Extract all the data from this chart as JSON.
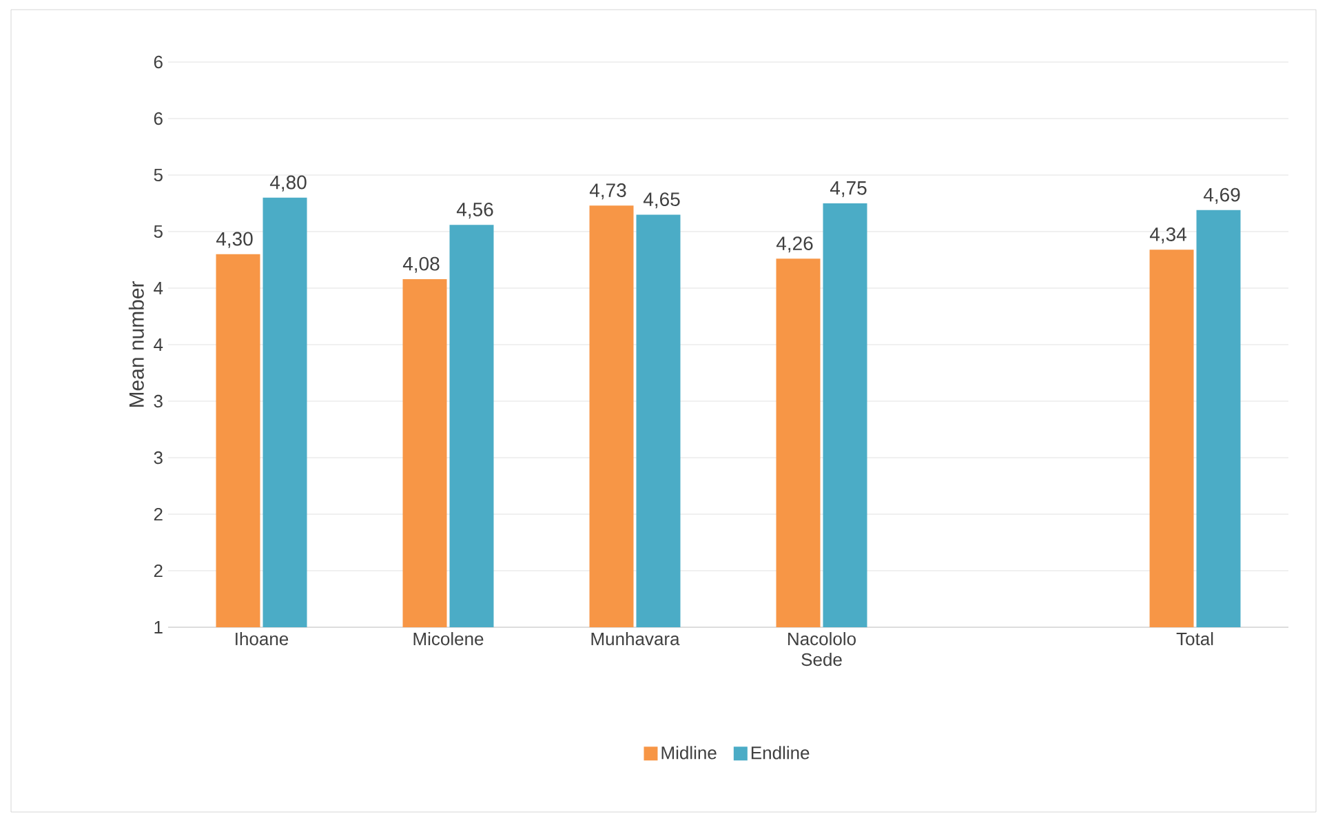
{
  "chart_data": {
    "type": "bar",
    "ylabel": "Mean number",
    "categories": [
      "Ihoane",
      "Micolene",
      "Munhavara",
      "Nacololo Sede",
      null,
      "Total"
    ],
    "series": [
      {
        "name": "Midline",
        "color": "#f79646",
        "values": [
          4.3,
          4.08,
          4.73,
          4.26,
          null,
          4.34
        ],
        "value_labels": [
          "4,30",
          "4,08",
          "4,73",
          "4,26",
          null,
          "4,34"
        ]
      },
      {
        "name": "Endline",
        "color": "#4bacc6",
        "values": [
          4.8,
          4.56,
          4.65,
          4.75,
          null,
          4.69
        ],
        "value_labels": [
          "4,80",
          "4,56",
          "4,65",
          "4,75",
          null,
          "4,69"
        ]
      }
    ],
    "ylim": [
      1,
      6
    ],
    "yticks": [
      1,
      {
        "value": 1.5,
        "label": "2"
      },
      2,
      {
        "value": 2.5,
        "label": "3"
      },
      3,
      {
        "value": 3.5,
        "label": "4"
      },
      4,
      {
        "value": 4.5,
        "label": "5"
      },
      5,
      {
        "value": 5.5,
        "label": "6"
      },
      6
    ],
    "grid": "y",
    "legend": "bottom"
  }
}
